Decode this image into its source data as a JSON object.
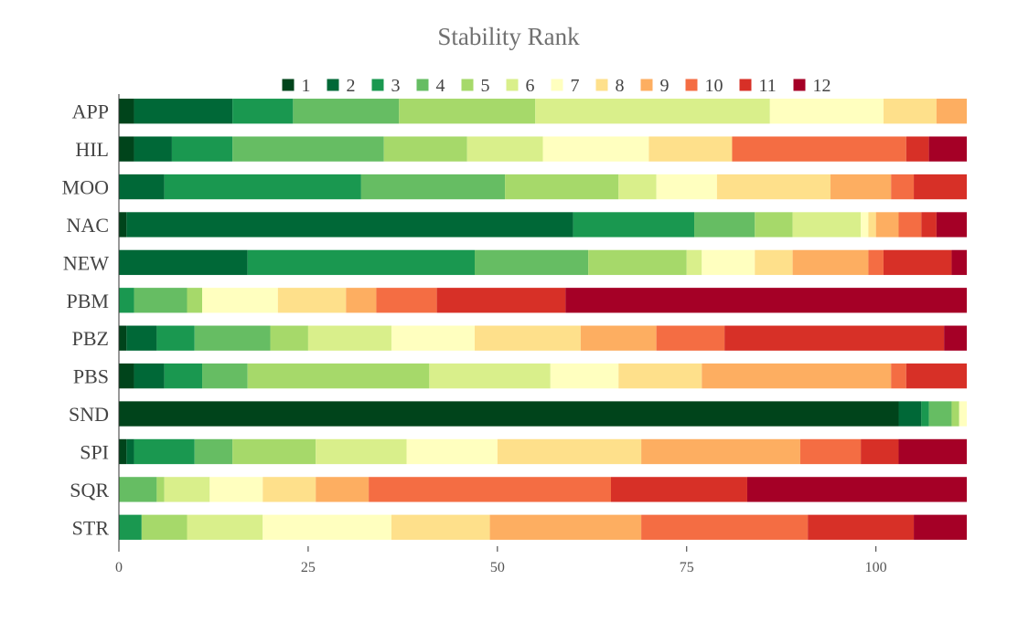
{
  "chart_data": {
    "type": "bar",
    "orientation": "horizontal",
    "stacked": true,
    "title": "Stability Rank",
    "xlabel": "",
    "ylabel": "",
    "xlim": [
      0,
      112
    ],
    "xticks": [
      0,
      25,
      50,
      75,
      100
    ],
    "grid": false,
    "legend_position": "top",
    "categories": [
      "APP",
      "HIL",
      "MOO",
      "NAC",
      "NEW",
      "PBM",
      "PBZ",
      "PBS",
      "SND",
      "SPI",
      "SQR",
      "STR"
    ],
    "series": [
      {
        "name": "1",
        "color": "#00441b",
        "values": [
          2,
          2,
          0,
          1,
          0,
          0,
          1,
          2,
          103,
          1,
          0,
          0
        ]
      },
      {
        "name": "2",
        "color": "#006837",
        "values": [
          13,
          5,
          6,
          59,
          17,
          0,
          4,
          4,
          3,
          1,
          0,
          0
        ]
      },
      {
        "name": "3",
        "color": "#1a9850",
        "values": [
          8,
          8,
          26,
          16,
          30,
          2,
          5,
          5,
          1,
          8,
          0,
          3
        ]
      },
      {
        "name": "4",
        "color": "#66bd63",
        "values": [
          14,
          20,
          19,
          8,
          15,
          7,
          10,
          6,
          3,
          5,
          5,
          0
        ]
      },
      {
        "name": "5",
        "color": "#a6d96a",
        "values": [
          18,
          11,
          15,
          5,
          13,
          2,
          5,
          24,
          1,
          11,
          1,
          6
        ]
      },
      {
        "name": "6",
        "color": "#d9ef8b",
        "values": [
          31,
          10,
          5,
          9,
          2,
          0,
          11,
          16,
          0,
          12,
          6,
          10
        ]
      },
      {
        "name": "7",
        "color": "#ffffbf",
        "values": [
          15,
          14,
          8,
          1,
          7,
          10,
          11,
          9,
          1,
          12,
          7,
          17
        ]
      },
      {
        "name": "8",
        "color": "#fee08b",
        "values": [
          7,
          11,
          15,
          1,
          5,
          9,
          14,
          11,
          0,
          19,
          7,
          13
        ]
      },
      {
        "name": "9",
        "color": "#fdae61",
        "values": [
          4,
          0,
          8,
          3,
          10,
          4,
          10,
          25,
          0,
          21,
          7,
          20
        ]
      },
      {
        "name": "10",
        "color": "#f46d43",
        "values": [
          0,
          23,
          3,
          3,
          2,
          8,
          9,
          2,
          0,
          8,
          32,
          22
        ]
      },
      {
        "name": "11",
        "color": "#d73027",
        "values": [
          0,
          3,
          7,
          2,
          9,
          17,
          29,
          8,
          0,
          5,
          18,
          14
        ]
      },
      {
        "name": "12",
        "color": "#a50026",
        "values": [
          0,
          5,
          0,
          4,
          2,
          53,
          3,
          0,
          0,
          9,
          29,
          7
        ]
      }
    ]
  }
}
